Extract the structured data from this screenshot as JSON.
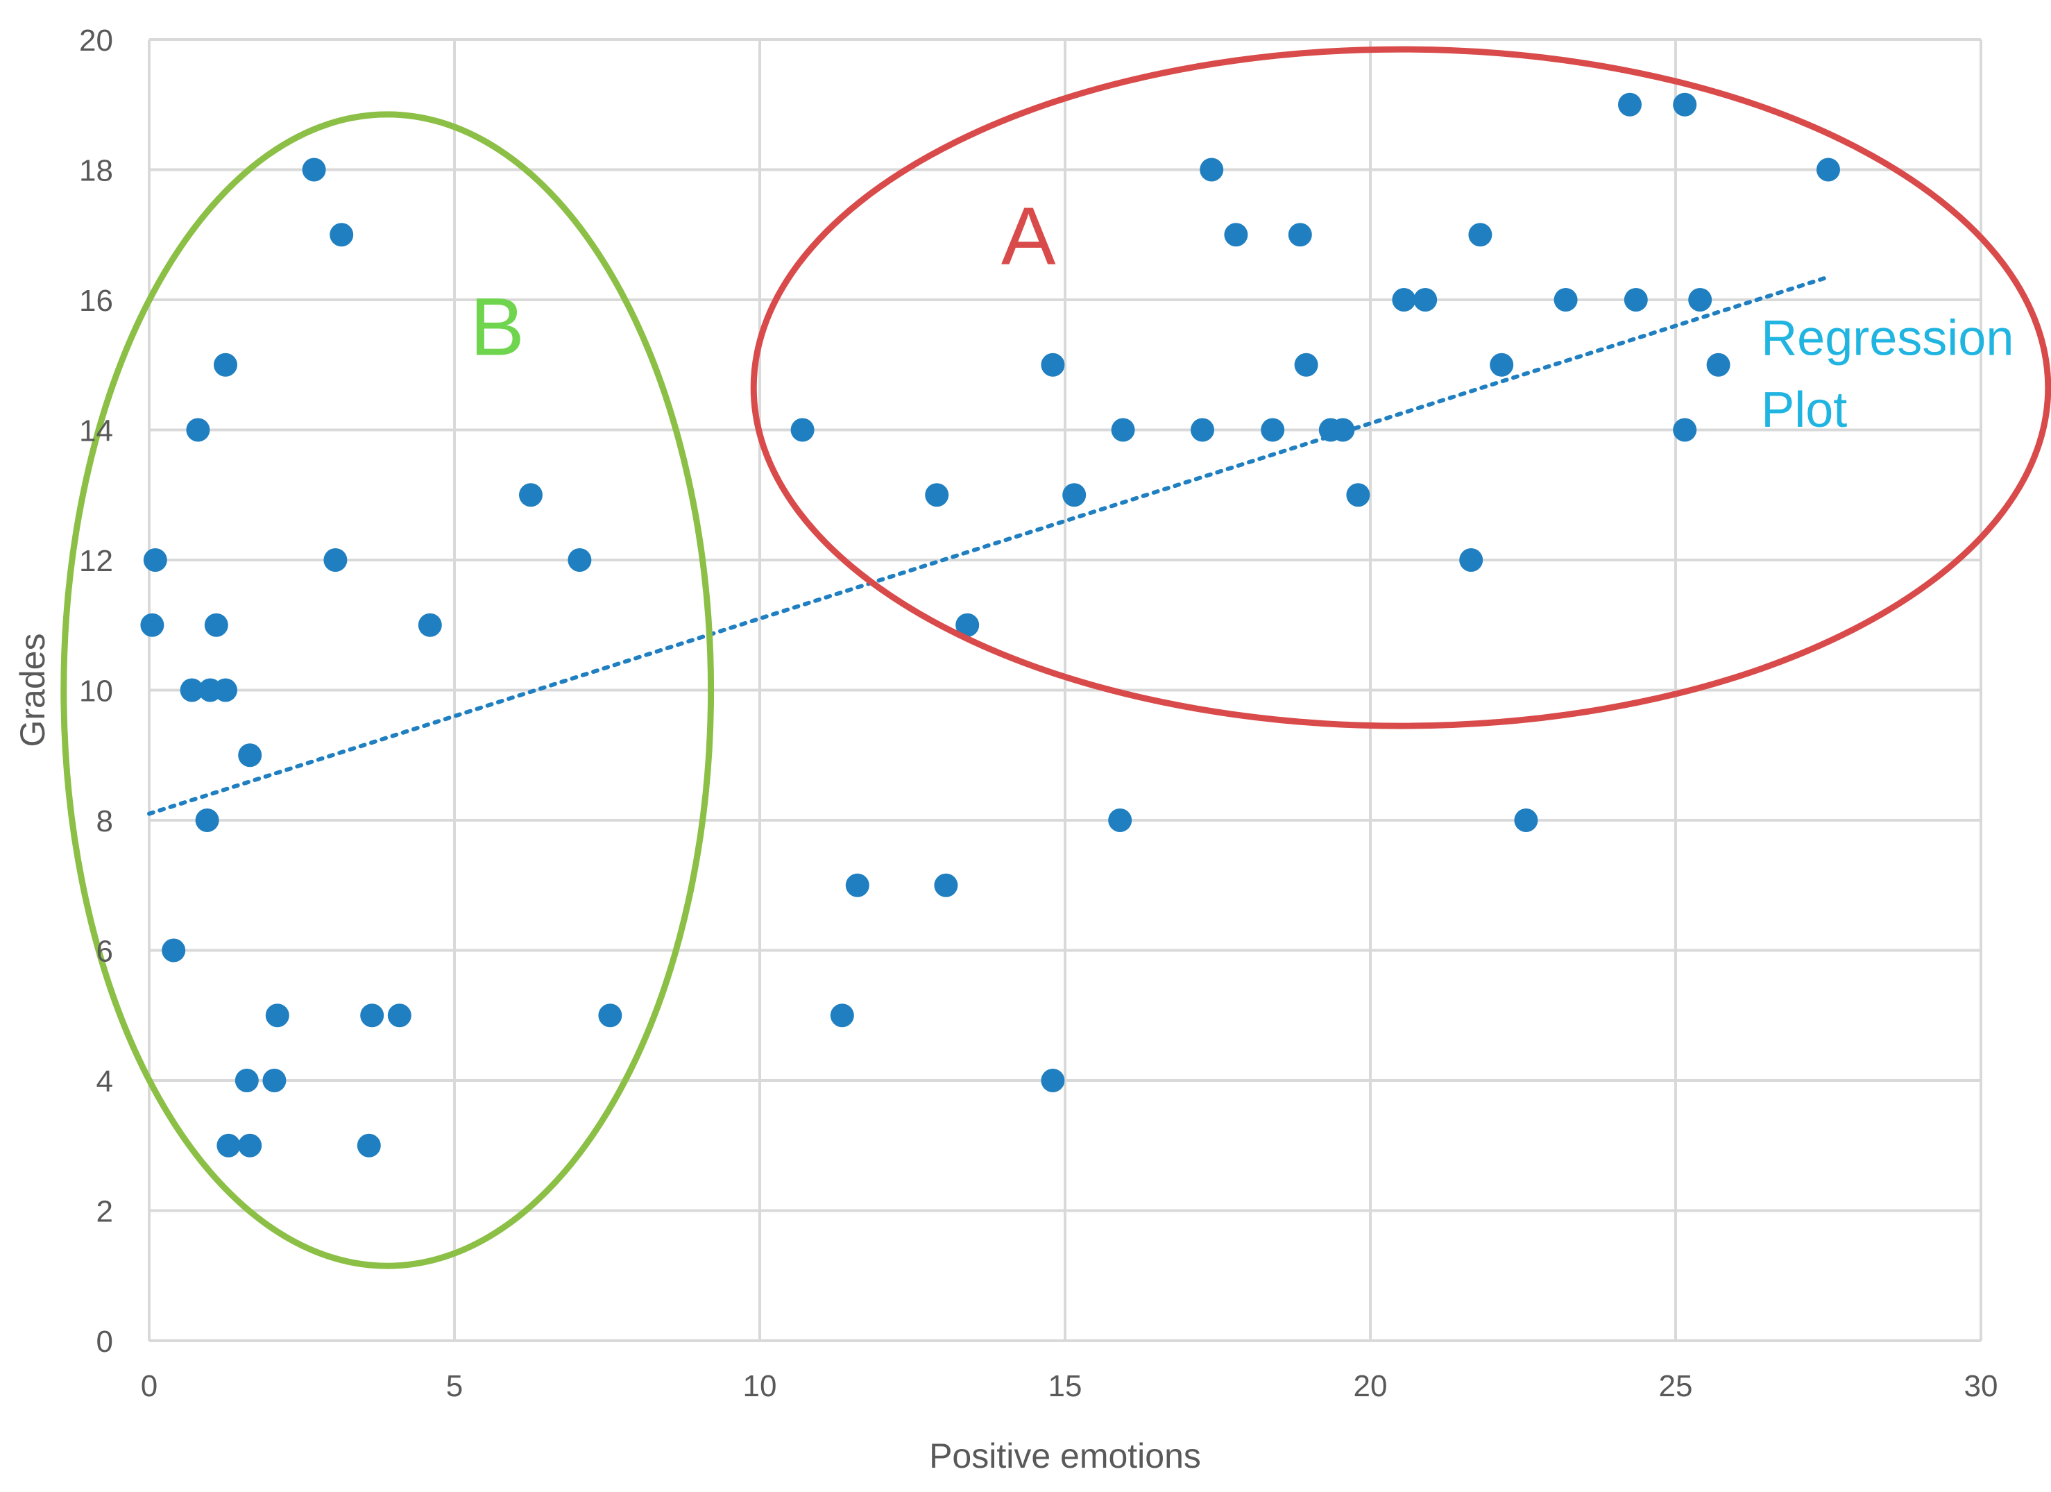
{
  "chart_data": {
    "type": "scatter",
    "title": "",
    "xlabel": "Positive emotions",
    "ylabel": "Grades",
    "xlim": [
      0,
      30
    ],
    "ylim": [
      0,
      20
    ],
    "xticks": [
      0,
      5,
      10,
      15,
      20,
      25,
      30
    ],
    "yticks": [
      0,
      2,
      4,
      6,
      8,
      10,
      12,
      14,
      16,
      18,
      20
    ],
    "grid": true,
    "marker_color": "#1f7fc0",
    "series": [
      {
        "points": [
          [
            0.1,
            12
          ],
          [
            0.05,
            11
          ],
          [
            0.4,
            6
          ],
          [
            0.7,
            10
          ],
          [
            0.8,
            14
          ],
          [
            0.95,
            8
          ],
          [
            1.0,
            10
          ],
          [
            1.1,
            11
          ],
          [
            1.25,
            10
          ],
          [
            1.25,
            15
          ],
          [
            1.3,
            3
          ],
          [
            1.6,
            4
          ],
          [
            1.65,
            9
          ],
          [
            1.65,
            3
          ],
          [
            2.05,
            4
          ],
          [
            2.1,
            5
          ],
          [
            2.7,
            18
          ],
          [
            3.05,
            12
          ],
          [
            3.15,
            17
          ],
          [
            3.6,
            3
          ],
          [
            3.65,
            5
          ],
          [
            4.1,
            5
          ],
          [
            4.6,
            11
          ],
          [
            6.25,
            13
          ],
          [
            7.05,
            12
          ],
          [
            7.55,
            5
          ],
          [
            10.7,
            14
          ],
          [
            11.35,
            5
          ],
          [
            11.6,
            7
          ],
          [
            12.9,
            13
          ],
          [
            13.05,
            7
          ],
          [
            13.4,
            11
          ],
          [
            14.8,
            15
          ],
          [
            14.8,
            4
          ],
          [
            15.15,
            13
          ],
          [
            15.9,
            8
          ],
          [
            15.95,
            14
          ],
          [
            17.25,
            14
          ],
          [
            17.4,
            18
          ],
          [
            17.8,
            17
          ],
          [
            18.4,
            14
          ],
          [
            18.85,
            17
          ],
          [
            18.95,
            15
          ],
          [
            19.35,
            14
          ],
          [
            19.55,
            14
          ],
          [
            19.8,
            13
          ],
          [
            20.55,
            16
          ],
          [
            20.9,
            16
          ],
          [
            21.65,
            12
          ],
          [
            21.8,
            17
          ],
          [
            22.15,
            15
          ],
          [
            22.55,
            8
          ],
          [
            23.2,
            16
          ],
          [
            24.25,
            19
          ],
          [
            24.35,
            16
          ],
          [
            25.15,
            19
          ],
          [
            25.15,
            14
          ],
          [
            25.4,
            16
          ],
          [
            25.7,
            15
          ],
          [
            27.5,
            18
          ]
        ]
      }
    ],
    "trendline": {
      "type": "linear",
      "style": "dotted",
      "x": [
        0,
        27.5
      ],
      "y": [
        8.1,
        16.35
      ]
    },
    "annotations": [
      {
        "text": "A",
        "color": "#d94a4a",
        "x": 14.4,
        "y": 16.55
      },
      {
        "text": "B",
        "color": "#6fd44e",
        "x": 5.7,
        "y": 15.15
      },
      {
        "text": "Regression",
        "color": "#20b4e0",
        "x": 26.4,
        "y": 15.15
      },
      {
        "text": "Plot",
        "color": "#20b4e0",
        "x": 26.4,
        "y": 14.05
      }
    ],
    "ellipses": [
      {
        "label": "A",
        "color": "#d94a4a",
        "center": [
          20.5,
          14.65
        ],
        "radius_x": 10.6,
        "radius_y": 5.2
      },
      {
        "label": "B",
        "color": "#8bbf45",
        "center": [
          3.9,
          10.0
        ],
        "radius_x": 5.3,
        "radius_y": 8.85
      }
    ]
  }
}
